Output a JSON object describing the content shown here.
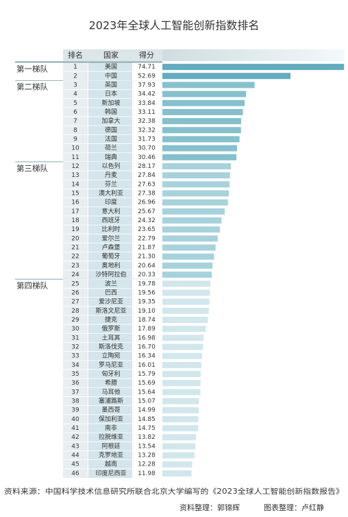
{
  "chart_data": {
    "type": "bar",
    "title": "2023年全球人工智能创新指数排名",
    "columns": [
      "排名",
      "国家",
      "得分"
    ],
    "series": [
      {
        "name": "第一梯队",
        "color": "#63abbf",
        "ranks": [
          1,
          2
        ],
        "categories": [
          "美国",
          "中国"
        ],
        "values": [
          74.71,
          52.69
        ],
        "value_labels": [
          "74.71",
          "52.69"
        ]
      },
      {
        "name": "第二梯队",
        "color": "#86c0cd",
        "ranks": [
          3,
          4,
          5,
          6,
          7,
          8,
          9,
          10,
          11
        ],
        "categories": [
          "英国",
          "日本",
          "新加坡",
          "韩国",
          "加拿大",
          "德国",
          "法国",
          "荷兰",
          "瑞典"
        ],
        "values": [
          37.93,
          34.42,
          33.84,
          33.11,
          32.38,
          32.32,
          31.73,
          30.7,
          30.46
        ],
        "value_labels": [
          "37.93",
          "34.42",
          "33.84",
          "33.11",
          "32.38",
          "32.32",
          "31.73",
          "30.70",
          "30.46"
        ]
      },
      {
        "name": "第三梯队",
        "color": "#a7d2dc",
        "ranks": [
          12,
          13,
          14,
          15,
          16,
          17,
          18,
          19,
          20,
          21,
          22,
          23,
          24
        ],
        "categories": [
          "以色列",
          "丹麦",
          "芬兰",
          "澳大利亚",
          "印度",
          "意大利",
          "西班牙",
          "比利时",
          "爱尔兰",
          "卢森堡",
          "葡萄牙",
          "奥地利",
          "沙特阿拉伯"
        ],
        "values": [
          28.17,
          27.84,
          27.63,
          27.38,
          26.96,
          25.67,
          24.32,
          23.65,
          22.79,
          21.87,
          21.3,
          20.64,
          20.33
        ],
        "value_labels": [
          "28.17",
          "27.84",
          "27.63",
          "27.38",
          "26.96",
          "25.67",
          "24.32",
          "23.65",
          "22.79",
          "21.87",
          "21.30",
          "20.64",
          "20.33"
        ]
      },
      {
        "name": "第四梯队",
        "color": "#d2e7ec",
        "ranks": [
          25,
          26,
          27,
          28,
          29,
          30,
          31,
          32,
          33,
          34,
          35,
          36,
          37,
          38,
          39,
          40,
          41,
          42,
          43,
          44,
          45,
          46
        ],
        "categories": [
          "波兰",
          "巴西",
          "爱沙尼亚",
          "斯洛文尼亚",
          "捷克",
          "俄罗斯",
          "土耳其",
          "斯洛伐克",
          "立陶宛",
          "罗马尼亚",
          "匈牙利",
          "希腊",
          "马耳他",
          "塞浦路斯",
          "墨西哥",
          "保加利亚",
          "南非",
          "拉脱维亚",
          "阿根廷",
          "克罗地亚",
          "越南",
          "印度尼西亚"
        ],
        "values": [
          19.78,
          19.56,
          19.35,
          19.1,
          18.74,
          17.89,
          16.98,
          16.7,
          16.34,
          16.01,
          15.79,
          15.69,
          15.64,
          15.07,
          14.99,
          14.85,
          14.75,
          13.82,
          13.54,
          13.28,
          12.28,
          11.98
        ],
        "value_labels": [
          "19.78",
          "19.56",
          "19.35",
          "19.10",
          "18.74",
          "17.89",
          "16.98",
          "16.70",
          "16.34",
          "16.01",
          "15.79",
          "15.69",
          "15.64",
          "15.07",
          "14.99",
          "14.85",
          "14.75",
          "13.82",
          "13.54",
          "13.28",
          "12.28",
          "11.98"
        ]
      }
    ],
    "source": "资料来源：中国科学技术信息研究所联合北京大学编写的《2023全球人工智能创新指数报告》",
    "credits": [
      "资料整理：郭锦辉",
      "图表整理：卢红静"
    ]
  }
}
